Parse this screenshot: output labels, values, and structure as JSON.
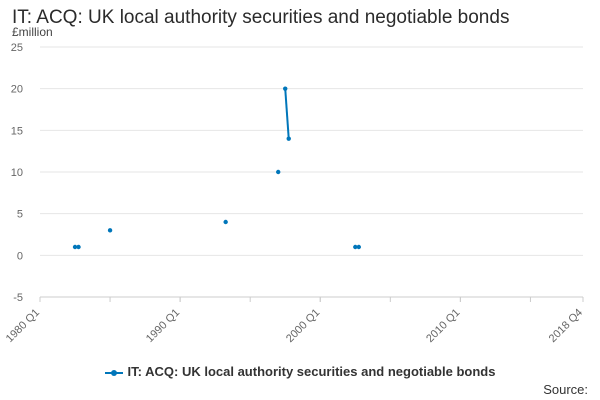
{
  "title": "IT: ACQ: UK local authority securities and negotiable bonds",
  "source_label": "Source:",
  "colors": {
    "series": "#0076ba",
    "grid": "#e6e6e6",
    "axis_text": "#666666"
  },
  "chart_data": {
    "type": "line",
    "title": "IT: ACQ: UK local authority securities and negotiable bonds",
    "ylabel": "£million",
    "xlabel": "",
    "ylim": [
      -5,
      25
    ],
    "yticks": [
      -5,
      0,
      5,
      10,
      15,
      20,
      25
    ],
    "xlim": [
      "1980 Q1",
      "2018 Q4"
    ],
    "xticks": [
      "1980 Q1",
      "1990 Q1",
      "2000 Q1",
      "2010 Q1",
      "2018 Q4"
    ],
    "grid": true,
    "legend_position": "bottom",
    "series": [
      {
        "name": "IT: ACQ: UK local authority securities and negotiable bonds",
        "points": [
          {
            "x": "1982 Q3",
            "y": 1
          },
          {
            "x": "1982 Q4",
            "y": 1
          },
          {
            "x": "1985 Q1",
            "y": 3
          },
          {
            "x": "1993 Q2",
            "y": 4
          },
          {
            "x": "1997 Q1",
            "y": 10
          },
          {
            "x": "1997 Q3",
            "y": 20
          },
          {
            "x": "1997 Q4",
            "y": 14
          },
          {
            "x": "2002 Q3",
            "y": 1
          },
          {
            "x": "2002 Q4",
            "y": 1
          }
        ]
      }
    ]
  }
}
